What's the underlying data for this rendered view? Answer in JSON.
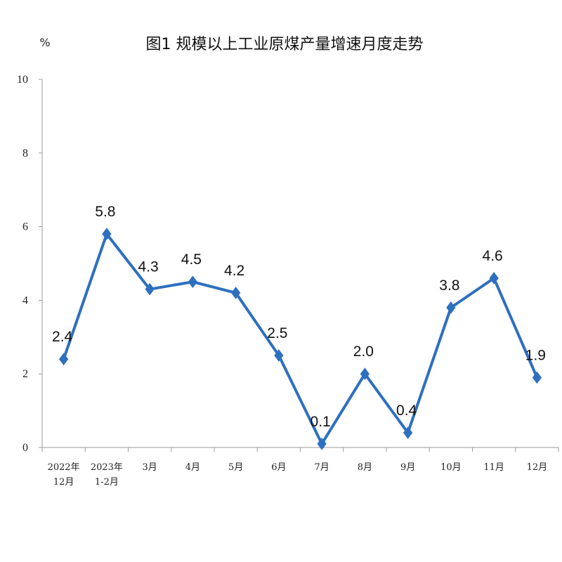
{
  "chart_data": {
    "type": "line",
    "title": "图1  规模以上工业原煤产量增速月度走势",
    "ylabel": "%",
    "ylim": [
      0,
      10
    ],
    "yticks": [
      "0",
      "2",
      "4",
      "6",
      "8",
      "10"
    ],
    "categories": [
      [
        "2022年",
        "12月"
      ],
      [
        "2023年",
        "1-2月"
      ],
      [
        "3月"
      ],
      [
        "4月"
      ],
      [
        "5月"
      ],
      [
        "6月"
      ],
      [
        "7月"
      ],
      [
        "8月"
      ],
      [
        "9月"
      ],
      [
        "10月"
      ],
      [
        "11月"
      ],
      [
        "12月"
      ]
    ],
    "values": [
      2.4,
      5.8,
      4.3,
      4.5,
      4.2,
      2.5,
      0.1,
      2.0,
      0.4,
      3.8,
      4.6,
      1.9
    ],
    "data_labels": [
      "2.4",
      "5.8",
      "4.3",
      "4.5",
      "4.2",
      "2.5",
      "0.1",
      "2.0",
      "0.4",
      "3.8",
      "4.6",
      "1.9"
    ],
    "series_color": "#2e6fbf",
    "grid": false,
    "legend": "none"
  }
}
